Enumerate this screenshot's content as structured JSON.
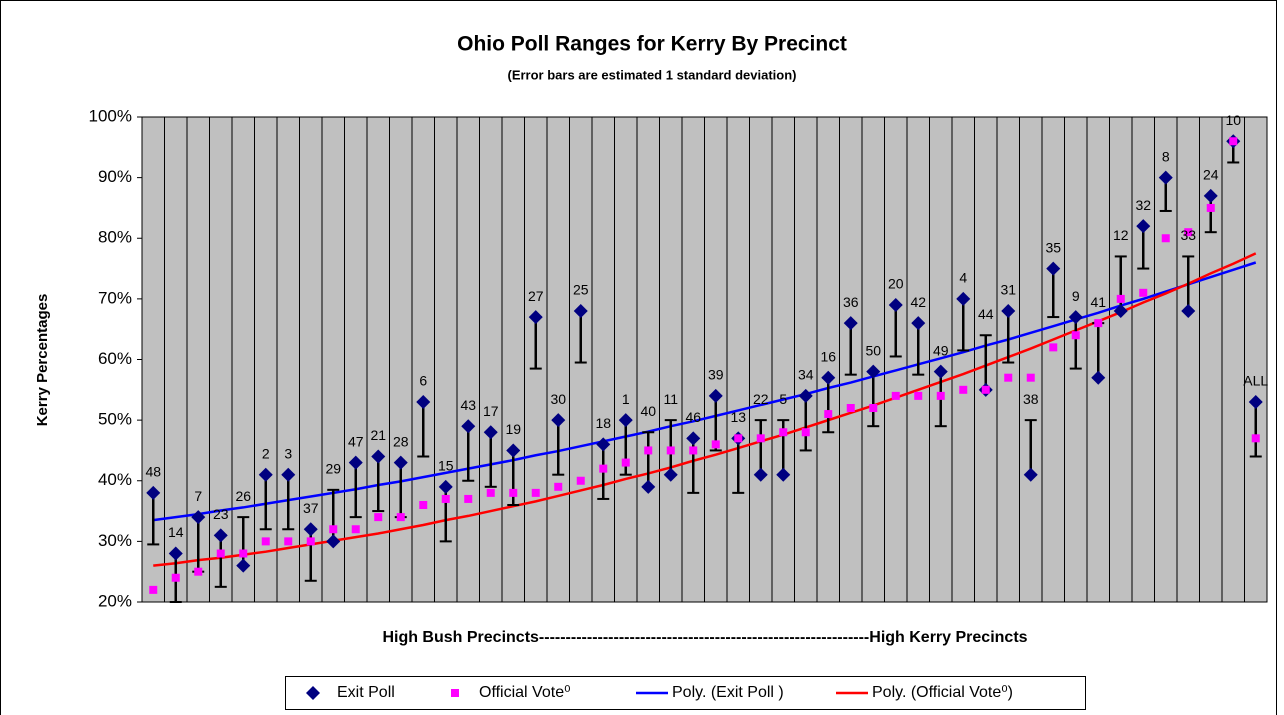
{
  "chart_data": {
    "type": "scatter",
    "title": "Ohio Poll Ranges for Kerry By Precinct",
    "subtitle": "(Error bars are estimated 1 standard deviation)",
    "y_label": "Kerry Percentages",
    "x_label": "High Bush Precincts--------------------------------------------------------------High Kerry Precincts",
    "categories": [
      "48",
      "14",
      "7",
      "23",
      "26",
      "2",
      "3",
      "37",
      "29",
      "47",
      "21",
      "28",
      "6",
      "15",
      "43",
      "17",
      "19",
      "27",
      "30",
      "25",
      "18",
      "1",
      "40",
      "11",
      "46",
      "39",
      "13",
      "22",
      "5",
      "34",
      "16",
      "36",
      "50",
      "20",
      "42",
      "49",
      "4",
      "44",
      "31",
      "38",
      "35",
      "9",
      "41",
      "12",
      "32",
      "8",
      "33",
      "24",
      "10",
      "ALL"
    ],
    "ylim": [
      20,
      100
    ],
    "yticks": [
      {
        "value": 20,
        "label": "20%"
      },
      {
        "value": 30,
        "label": "30%"
      },
      {
        "value": 40,
        "label": "40%"
      },
      {
        "value": 50,
        "label": "50%"
      },
      {
        "value": 60,
        "label": "60%"
      },
      {
        "value": 70,
        "label": "70%"
      },
      {
        "value": 80,
        "label": "80%"
      },
      {
        "value": 90,
        "label": "90%"
      },
      {
        "value": 100,
        "label": "100%"
      }
    ],
    "grid": true,
    "legend": "bottom",
    "series": [
      {
        "name": "Exit Poll",
        "color": "#000080",
        "marker": "diamond",
        "values": [
          38,
          28,
          34,
          31,
          26,
          41,
          41,
          32,
          30,
          43,
          44,
          43,
          53,
          39,
          49,
          48,
          45,
          67,
          50,
          68,
          46,
          50,
          39,
          41,
          47,
          54,
          47,
          41,
          41,
          54,
          57,
          66,
          58,
          69,
          66,
          58,
          70,
          55,
          68,
          41,
          75,
          67,
          57,
          68,
          82,
          90,
          68,
          87,
          96,
          53
        ],
        "error_low": [
          29.5,
          20,
          25,
          22.5,
          26,
          32,
          32,
          23.5,
          30,
          34,
          35,
          34,
          44,
          30,
          40,
          39,
          36,
          58.5,
          41,
          59.5,
          37,
          41,
          39,
          41,
          38,
          45,
          38,
          41,
          41,
          45,
          48,
          57.5,
          49,
          60.5,
          57.5,
          49,
          61.5,
          55,
          59.5,
          41,
          67,
          58.5,
          57,
          68,
          75,
          84.5,
          68,
          81,
          92.5,
          44
        ],
        "error_high": [
          38,
          28,
          34,
          31,
          34,
          41,
          41,
          32,
          38.5,
          43,
          44,
          43,
          53,
          39,
          49,
          48,
          45,
          67,
          50,
          68,
          46,
          50,
          48,
          50,
          47,
          54,
          47,
          50,
          50,
          54,
          57,
          66,
          58,
          69,
          66,
          58,
          70,
          64,
          68,
          50,
          75,
          67,
          66,
          77,
          82,
          90,
          77,
          87,
          96,
          53
        ]
      },
      {
        "name": "Official Vote⁰",
        "color": "#ff00ff",
        "marker": "square",
        "values": [
          22,
          24,
          25,
          28,
          28,
          30,
          30,
          30,
          32,
          32,
          34,
          34,
          36,
          37,
          37,
          38,
          38,
          38,
          39,
          40,
          42,
          43,
          45,
          45,
          45,
          46,
          47,
          47,
          48,
          48,
          51,
          52,
          52,
          54,
          54,
          54,
          55,
          55,
          57,
          57,
          62,
          64,
          66,
          70,
          71,
          80,
          81,
          85,
          96,
          47
        ]
      },
      {
        "name": "Poly. (Exit Poll )",
        "color": "#0000ff",
        "marker": "line",
        "values": [
          33.5,
          34.0,
          34.5,
          35.1,
          35.6,
          36.2,
          36.8,
          37.4,
          38.0,
          38.6,
          39.3,
          39.9,
          40.6,
          41.3,
          42.0,
          42.7,
          43.4,
          44.2,
          44.9,
          45.7,
          46.5,
          47.3,
          48.1,
          49.0,
          49.8,
          50.7,
          51.6,
          52.5,
          53.4,
          54.3,
          55.3,
          56.2,
          57.2,
          58.2,
          59.2,
          60.2,
          61.2,
          62.3,
          63.3,
          64.4,
          65.5,
          66.6,
          67.7,
          68.9,
          70.0,
          71.2,
          72.4,
          73.6,
          74.8,
          76.0
        ]
      },
      {
        "name": "Poly. (Official Vote⁰)",
        "color": "#ff0000",
        "marker": "line",
        "values": [
          26.0,
          26.4,
          26.9,
          27.3,
          27.8,
          28.3,
          28.9,
          29.5,
          30.1,
          30.7,
          31.3,
          32.0,
          32.7,
          33.5,
          34.2,
          35.0,
          35.8,
          36.6,
          37.5,
          38.4,
          39.3,
          40.3,
          41.2,
          42.2,
          43.3,
          44.3,
          45.4,
          46.5,
          47.6,
          48.8,
          50.0,
          51.2,
          52.4,
          53.7,
          55.0,
          56.3,
          57.6,
          59.0,
          60.4,
          61.8,
          63.3,
          64.8,
          66.3,
          67.8,
          69.4,
          70.9,
          72.5,
          74.2,
          75.8,
          77.5
        ]
      }
    ]
  }
}
